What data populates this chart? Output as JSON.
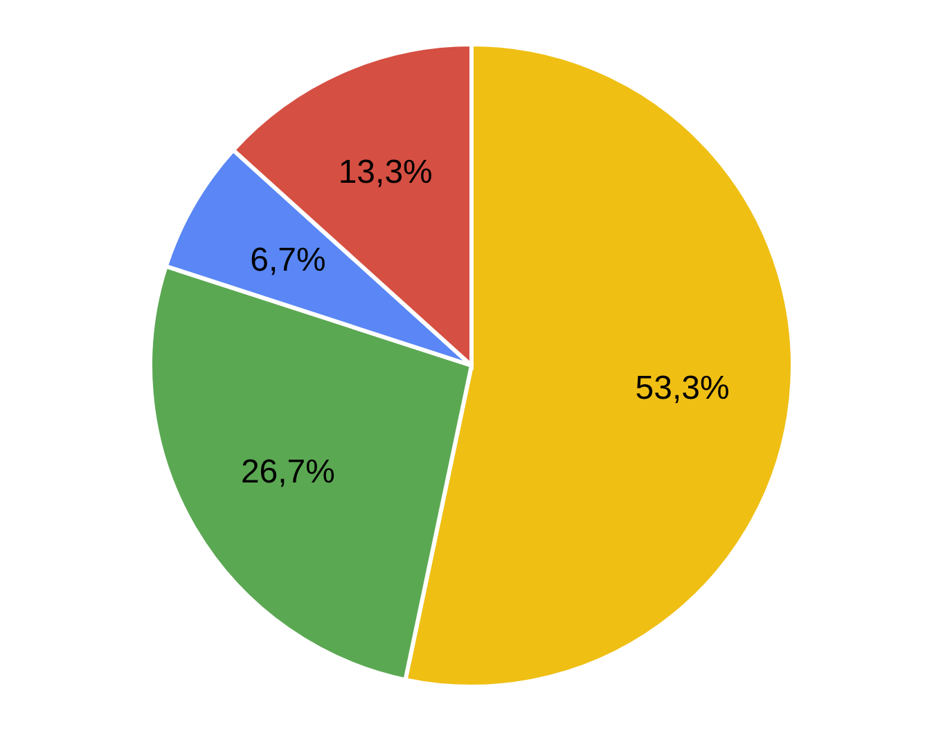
{
  "chart_data": {
    "type": "pie",
    "categories": [
      null,
      null,
      null,
      null
    ],
    "values": [
      53.3,
      26.7,
      6.7,
      13.3
    ],
    "colors": [
      "#efbf14",
      "#5ba853",
      "#5a87f5",
      "#d54f42"
    ],
    "value_labels": [
      "53,3%",
      "26,7%",
      "6,7%",
      "13,3%"
    ]
  }
}
